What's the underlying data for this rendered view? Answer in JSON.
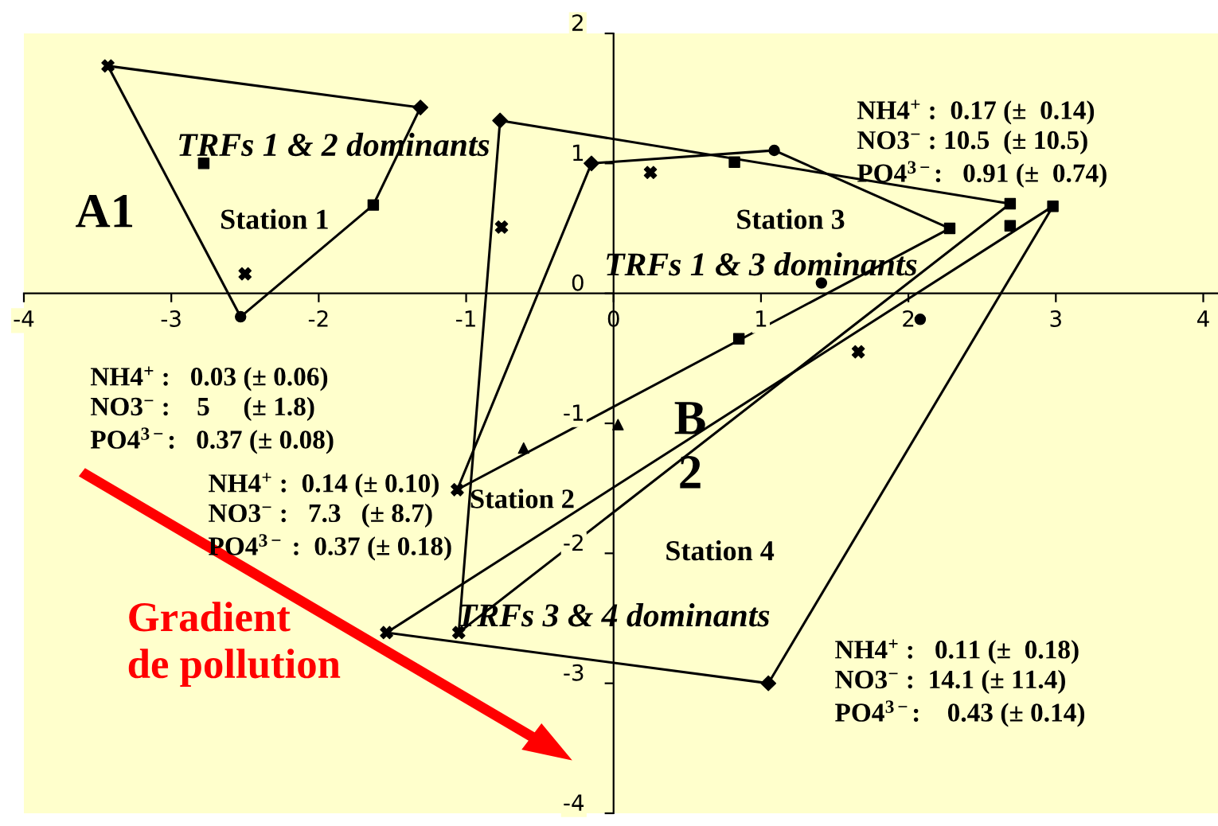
{
  "chart_data": {
    "type": "scatter",
    "xlim": [
      -4,
      4.1
    ],
    "ylim": [
      -4,
      2
    ],
    "xticks": [
      -4,
      -3,
      -2,
      -1,
      0,
      1,
      2,
      3,
      4
    ],
    "yticks": [
      -4,
      -3,
      -2,
      -1,
      0,
      1,
      2
    ],
    "grid": false,
    "legend": false,
    "series": [
      {
        "type": "line",
        "color": "#000000",
        "line_style": "solid",
        "x": [
          -3.43,
          -1.31
        ],
        "values": [
          1.75,
          1.43
        ]
      },
      {
        "type": "line",
        "color": "#000000",
        "line_style": "solid",
        "x": [
          -1.63,
          -1.31
        ],
        "values": [
          0.68,
          1.43
        ]
      },
      {
        "type": "line",
        "color": "#000000",
        "line_style": "solid",
        "x": [
          -2.53,
          -1.63
        ],
        "values": [
          -0.18,
          0.68
        ]
      },
      {
        "type": "line",
        "color": "#000000",
        "line_style": "solid",
        "x": [
          -3.43,
          -2.53
        ],
        "values": [
          1.75,
          -0.18
        ]
      },
      {
        "type": "line",
        "color": "#000000",
        "x": [
          -0.15,
          1.09
        ],
        "values": [
          1.0,
          1.1
        ]
      },
      {
        "type": "line",
        "color": "#000000",
        "x": [
          1.09,
          2.28
        ],
        "values": [
          1.1,
          0.5
        ]
      },
      {
        "type": "line",
        "color": "#000000",
        "x": [
          -1.06,
          2.28
        ],
        "values": [
          -1.51,
          0.5
        ]
      },
      {
        "type": "line",
        "color": "#000000",
        "x": [
          -1.06,
          -0.15
        ],
        "values": [
          -1.51,
          1.0
        ]
      },
      {
        "type": "line",
        "color": "#000000",
        "x": [
          -0.77,
          2.69
        ],
        "values": [
          1.33,
          0.69
        ]
      },
      {
        "type": "line",
        "color": "#000000",
        "x": [
          -1.05,
          2.69
        ],
        "values": [
          -2.61,
          0.69
        ]
      },
      {
        "type": "line",
        "color": "#000000",
        "x": [
          -1.05,
          -0.77
        ],
        "values": [
          -2.61,
          1.33
        ]
      },
      {
        "type": "line",
        "color": "#000000",
        "x": [
          -1.54,
          2.98
        ],
        "values": [
          -2.61,
          0.67
        ]
      },
      {
        "type": "line",
        "color": "#000000",
        "x": [
          1.05,
          2.98
        ],
        "values": [
          -3.0,
          0.67
        ]
      },
      {
        "type": "line",
        "color": "#000000",
        "x": [
          -1.54,
          1.05
        ],
        "values": [
          -2.61,
          -3.0
        ]
      },
      {
        "marker": "diamond",
        "color": "#000000",
        "x": [
          -1.31,
          -0.77,
          -0.15,
          1.05
        ],
        "values": [
          1.43,
          1.33,
          1.0,
          -3.0
        ]
      },
      {
        "marker": "circle",
        "color": "#000000",
        "x": [
          -2.53,
          1.09,
          1.41,
          2.08
        ],
        "values": [
          -0.18,
          1.1,
          0.08,
          -0.2
        ]
      },
      {
        "marker": "square",
        "color": "#000000",
        "x": [
          -1.63,
          2.69,
          2.98,
          2.28
        ],
        "values": [
          0.68,
          0.69,
          0.67,
          0.5
        ]
      },
      {
        "marker": "cross",
        "color": "#000000",
        "x": [
          -3.43,
          -2.5,
          -0.76,
          0.25,
          1.66,
          -1.06,
          -1.05,
          -1.54
        ],
        "values": [
          1.75,
          0.15,
          0.51,
          0.93,
          -0.45,
          -1.51,
          -2.61,
          -2.61
        ]
      },
      {
        "marker": "square",
        "color": "#000000",
        "x": [
          -2.78,
          0.82,
          2.69,
          0.85
        ],
        "values": [
          1.0,
          1.01,
          0.52,
          -0.35
        ]
      },
      {
        "marker": "triangle",
        "color": "#000000",
        "x": [
          -0.61,
          0.03
        ],
        "values": [
          -1.19,
          -1.01
        ]
      }
    ],
    "annotations": [
      "TRFs 1 & 2 dominants",
      "A1",
      "Station 1",
      "NH4$^{+}$ :   0.03 (± 0.06)\nNO3$^{−}$ :    5     (± 1.8)\nPO4$^{3−}$:   0.37 (± 0.08)",
      "NH4$^{+}$ :  0.17 (±  0.14)\nNO3$^{−}$ : 10.5  (± 10.5)\nPO4$^{3−}$:   0.91 (±  0.74)",
      "Station 3",
      "TRFs 1 & 3 dominants",
      "B\n2",
      "NH4$^{+}$ :  0.14 (± 0.10)\nNO3$^{−}$ :   7.3   (± 8.7)\nPO4$^{3−}$ :  0.37 (± 0.18)",
      "Station 2",
      "Station 4",
      "TRFs 3 & 4 dominants",
      "NH4$^{+}$ :   0.11 (±  0.18)\nNO3$^{−}$ :  14.1 (± 11.4)\nPO4$^{3−}$:    0.43 (± 0.14)",
      "Gradient\nde pollution"
    ]
  }
}
